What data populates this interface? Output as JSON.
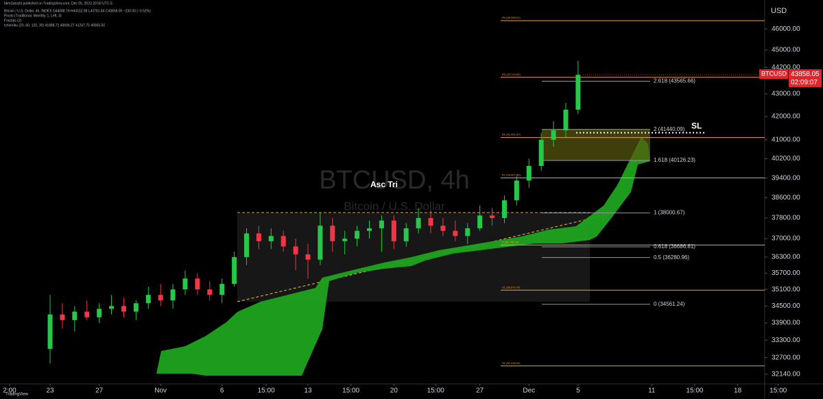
{
  "chart_data": {
    "type": "candlestick",
    "header": {
      "published": "bkmSatoshi published on TradingView.com, Dec 05, 2023 20:50 UTC-5",
      "symbol_line": "Bitcoin / U.S. Dollar, 4h, INDEX  O44088.78 H44152.98 L43781.84 C43858.05 −230.00 (−0.52%)",
      "indicators": [
        "Pivots (Traditional, Monthly, 1, Left, 3)",
        "Fractals (2)",
        "Ichimoku (20, 60, 120, 30)  41888.72  40606.27  41247.75  40005.50"
      ]
    },
    "watermark": {
      "symbol": "BTCUSD, 4h",
      "description": "Bitcoin / U.S. Dollar"
    },
    "annotation": "Asc Tri",
    "stop_loss": {
      "label": "SL",
      "value": 41300
    },
    "currency": "USD",
    "price_label": {
      "symbol": "BTCUSD",
      "price": 43858.05,
      "countdown": "02:09:07"
    },
    "footer": "TradingView",
    "up_color": "#26c84a",
    "down_color": "#f23645",
    "log": true,
    "x": [
      0,
      1,
      2,
      3,
      4,
      5,
      6,
      7,
      8,
      9,
      10,
      11,
      12,
      13,
      14,
      15,
      16,
      17,
      18,
      19,
      20,
      21,
      22,
      23,
      24,
      25,
      26,
      27,
      28,
      29,
      30,
      31,
      32,
      33,
      34,
      35,
      36,
      37,
      38,
      39,
      40,
      41,
      42,
      43
    ],
    "open": [
      33000,
      34200,
      34000,
      34300,
      34100,
      34400,
      34500,
      34300,
      34600,
      34900,
      34700,
      35100,
      35500,
      35100,
      34900,
      35300,
      36300,
      37200,
      36900,
      37100,
      36700,
      36400,
      36200,
      37500,
      36900,
      37000,
      37300,
      37400,
      37700,
      36900,
      37400,
      37800,
      37500,
      37300,
      37100,
      37400,
      37900,
      37800,
      38500,
      39300,
      39900,
      41000,
      41400,
      42300
    ],
    "high": [
      34900,
      34600,
      34500,
      34700,
      34600,
      34900,
      34800,
      34700,
      35200,
      35300,
      35300,
      35800,
      35700,
      35400,
      35500,
      36500,
      37400,
      37500,
      37400,
      37300,
      37000,
      36800,
      38000,
      37800,
      37300,
      37500,
      37700,
      37900,
      37900,
      37600,
      38200,
      38100,
      37800,
      37700,
      37600,
      38300,
      38200,
      38700,
      39500,
      40200,
      41300,
      41800,
      42600,
      44500
    ],
    "low": [
      32500,
      33700,
      33600,
      34000,
      33900,
      34200,
      34100,
      34000,
      34400,
      34500,
      34400,
      34900,
      34900,
      34700,
      34600,
      35200,
      36000,
      36600,
      36600,
      36500,
      35800,
      35500,
      36000,
      36500,
      36400,
      36700,
      37000,
      36500,
      36600,
      36700,
      37200,
      37200,
      37100,
      36900,
      36800,
      37300,
      37500,
      37600,
      38300,
      39000,
      39700,
      40700,
      41100,
      42100
    ],
    "close": [
      34200,
      34000,
      34300,
      34100,
      34400,
      34500,
      34300,
      34600,
      34900,
      34700,
      35100,
      35500,
      35100,
      34900,
      35300,
      36300,
      37200,
      36900,
      37100,
      36700,
      36400,
      36200,
      37500,
      36900,
      37000,
      37300,
      37400,
      37700,
      36900,
      37400,
      37800,
      37500,
      37300,
      37100,
      37400,
      37900,
      37800,
      38500,
      39300,
      39900,
      41000,
      41400,
      42300,
      43858.05
    ],
    "xlim": [
      -4.08,
      58.2
    ],
    "xticks": [
      {
        "value": -3.3,
        "label": "2:00"
      },
      {
        "value": 0,
        "label": "23"
      },
      {
        "value": 4,
        "label": "27"
      },
      {
        "value": 9,
        "label": "Nov"
      },
      {
        "value": 14,
        "label": "6"
      },
      {
        "value": 17.6,
        "label": "15:00"
      },
      {
        "value": 21,
        "label": "13"
      },
      {
        "value": 24.5,
        "label": "15:00"
      },
      {
        "value": 28,
        "label": "20"
      },
      {
        "value": 31.4,
        "label": "15:00"
      },
      {
        "value": 35,
        "label": "27"
      },
      {
        "value": 39,
        "label": "Dec"
      },
      {
        "value": 43,
        "label": "5"
      },
      {
        "value": 49,
        "label": "11"
      },
      {
        "value": 52.5,
        "label": "15:00"
      },
      {
        "value": 56,
        "label": "18"
      },
      {
        "value": 59.3,
        "label": "15:00"
      }
    ],
    "ylim": [
      31820,
      47400
    ],
    "yticks": [
      {
        "value": 46000,
        "label": "46000.00"
      },
      {
        "value": 45000,
        "label": "45000.00"
      },
      {
        "value": 44200,
        "label": "44200.00"
      },
      {
        "value": 43000,
        "label": "43000.00"
      },
      {
        "value": 42000,
        "label": "42000.00"
      },
      {
        "value": 41000,
        "label": "41000.00"
      },
      {
        "value": 40200,
        "label": "40200.00"
      },
      {
        "value": 39400,
        "label": "39400.00"
      },
      {
        "value": 38600,
        "label": "38600.00"
      },
      {
        "value": 37800,
        "label": "37800.00"
      },
      {
        "value": 37000,
        "label": "37000.00"
      },
      {
        "value": 36300,
        "label": "36300.00"
      },
      {
        "value": 35700,
        "label": "35700.00"
      },
      {
        "value": 35100,
        "label": "35100.00"
      },
      {
        "value": 34500,
        "label": "34500.00"
      },
      {
        "value": 33900,
        "label": "33900.00"
      },
      {
        "value": 33300,
        "label": "33300.00"
      },
      {
        "value": 32700,
        "label": "32700.00"
      },
      {
        "value": 32140,
        "label": "32140.00"
      }
    ],
    "fib_levels": [
      {
        "label": "2.618 (43565.66)",
        "value": 43565.66
      },
      {
        "label": "2 (41440.09)",
        "value": 41440.09
      },
      {
        "label": "1.618 (40126.23)",
        "value": 40126.23
      },
      {
        "label": "1 (38000.67)",
        "value": 38000.67
      },
      {
        "label": "0.618 (36686.81)",
        "value": 36686.81
      },
      {
        "label": "0.5 (36280.96)",
        "value": 36280.96
      },
      {
        "label": "0 (34561.24)",
        "value": 34561.24
      }
    ],
    "pivots": [
      {
        "label": "R4 (46,395.61)",
        "value": 46395.61
      },
      {
        "label": "R3 (43,743.83)",
        "value": 43743.83
      },
      {
        "label": "R2 (41,091.67)",
        "value": 41091.67
      },
      {
        "label": "R1 (39,407.45)",
        "value": 39407.45
      },
      {
        "label": "P (36,755.29)",
        "value": 36755.29
      },
      {
        "label": "S1 (35,071.07)",
        "value": 35071.07
      },
      {
        "label": "S2 (32,418.91)",
        "value": 32418.91
      }
    ],
    "pivot_color": "#f0a040",
    "fib_color": "#9598a1"
  }
}
